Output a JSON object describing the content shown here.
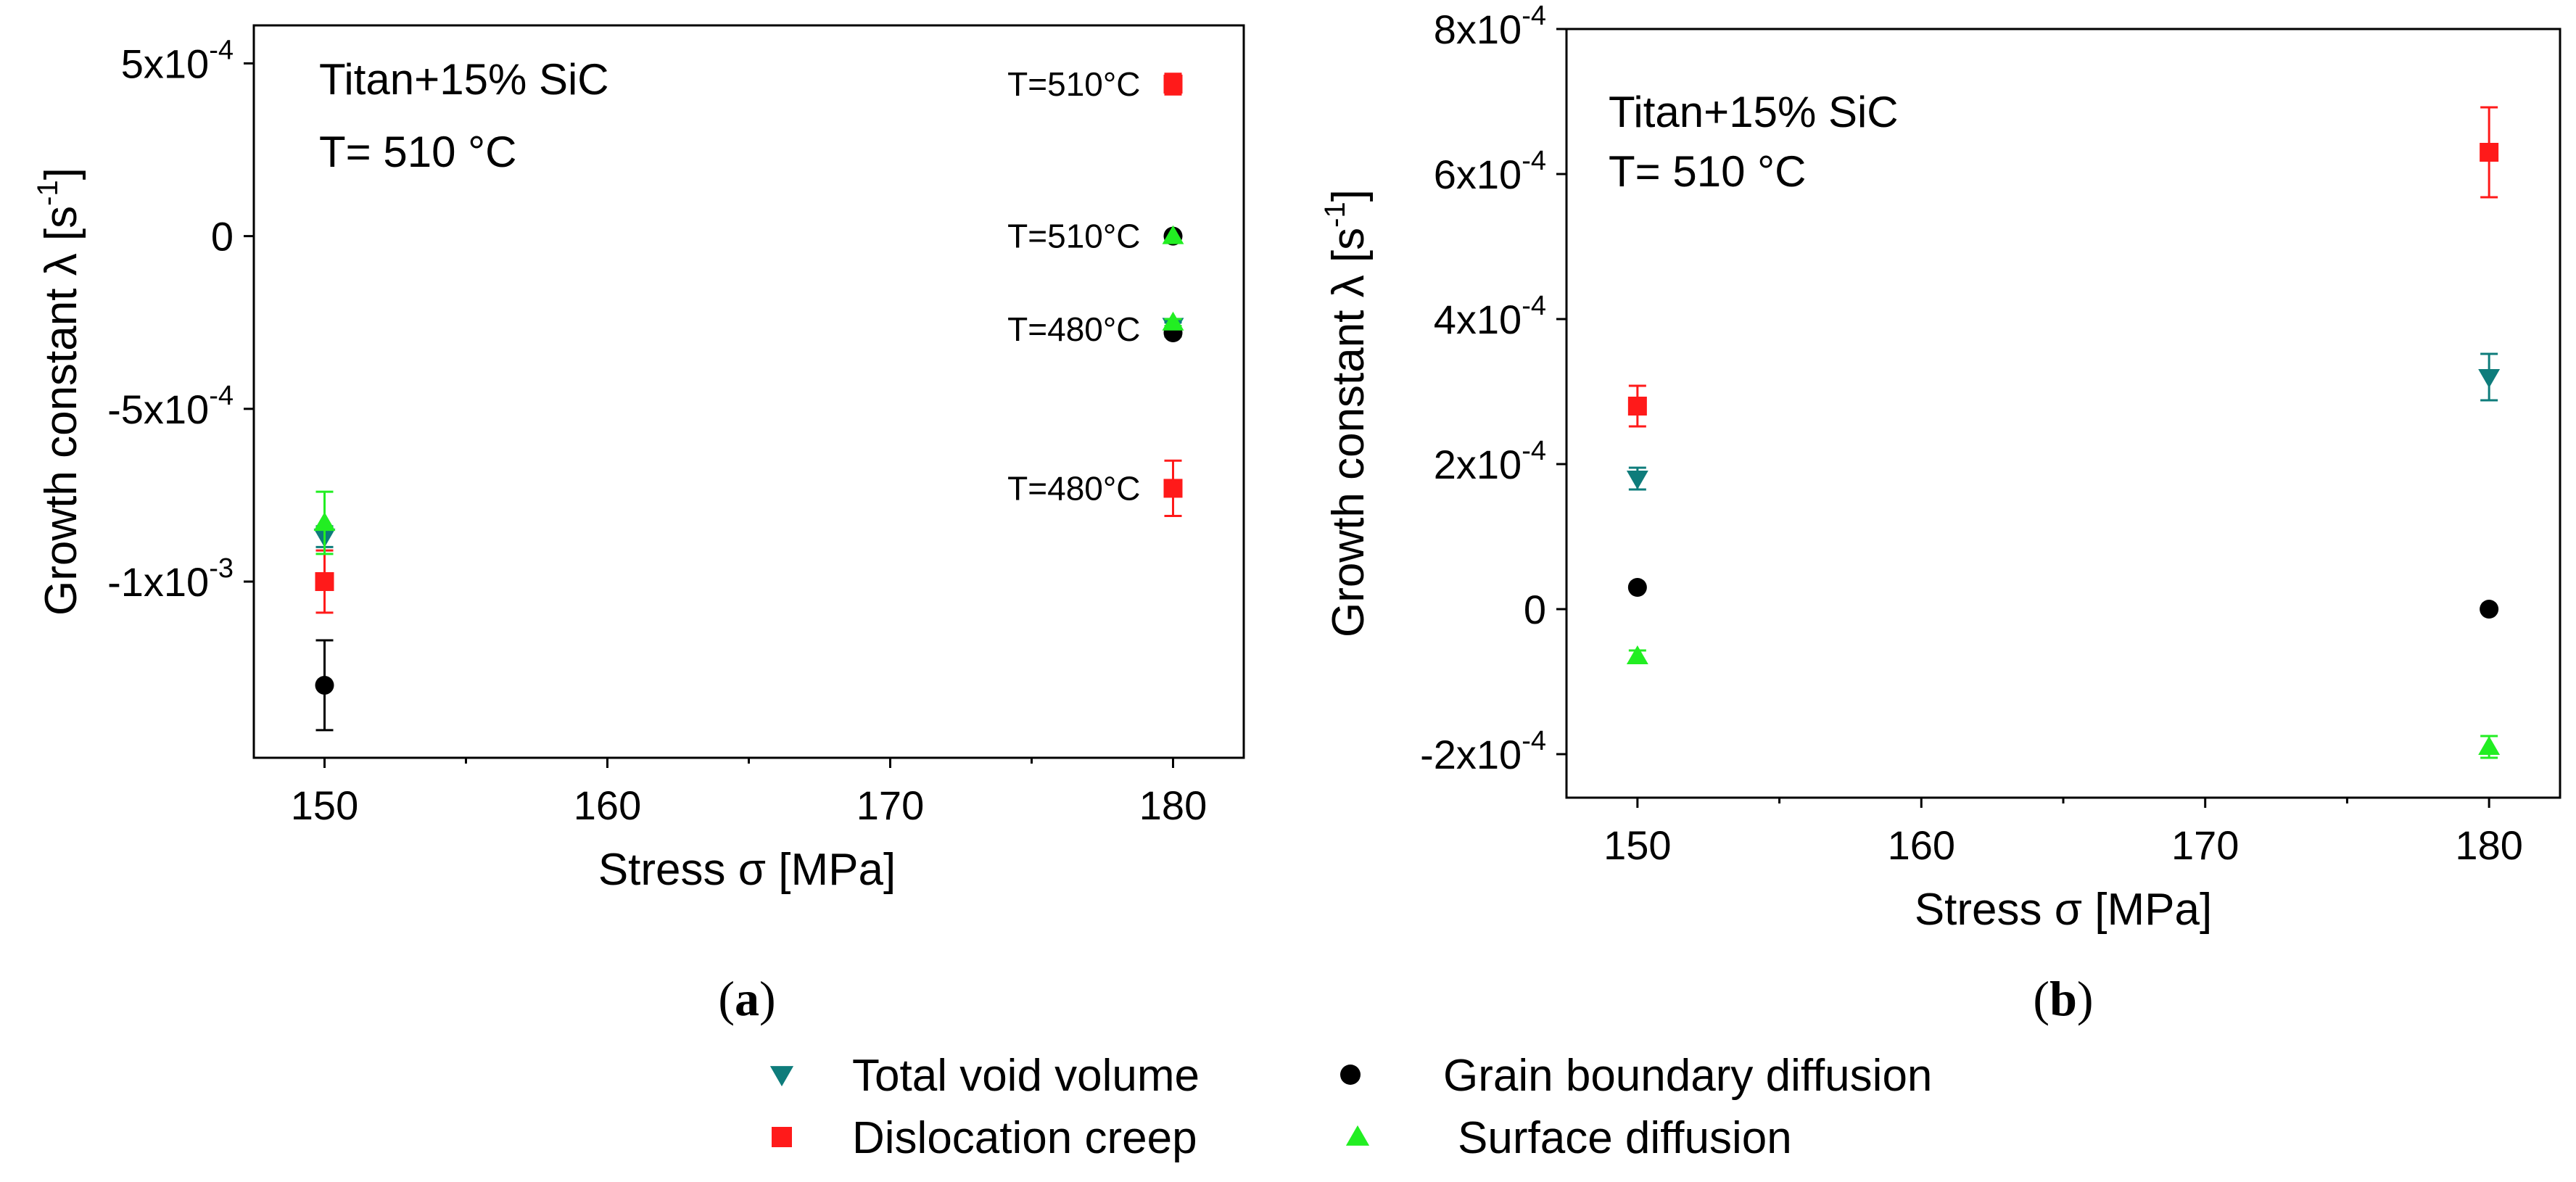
{
  "colors": {
    "total_void_volume": "#0e7c7b",
    "dislocation_creep": "#ff1a1a",
    "grain_boundary_diffusion": "#000000",
    "surface_diffusion": "#22ee22"
  },
  "legend": {
    "entries": [
      {
        "key": "total_void_volume",
        "label": "Total void volume",
        "marker": "triangle-down"
      },
      {
        "key": "grain_boundary_diffusion",
        "label": "Grain boundary diffusion",
        "marker": "circle"
      },
      {
        "key": "dislocation_creep",
        "label": "Dislocation creep",
        "marker": "square"
      },
      {
        "key": "surface_diffusion",
        "label": "Surface diffusion",
        "marker": "triangle-up"
      }
    ]
  },
  "chart_data": [
    {
      "type": "scatter",
      "panel_label": "a",
      "title": "",
      "annotation_lines": [
        "Titan+15% SiC",
        "T= 510 °C"
      ],
      "xlabel": "Stress σ [MPa]",
      "ylabel": "Growth constant λ [s-1]",
      "xlim": [
        147.5,
        182.5
      ],
      "ylim": [
        -0.00151,
        0.00061
      ],
      "xticks": [
        150,
        160,
        170,
        180
      ],
      "xtick_labels": [
        "150",
        "160",
        "170",
        "180"
      ],
      "yticks": [
        0.0005,
        0,
        -0.0005,
        -0.001
      ],
      "ytick_labels": [
        {
          "base": "5x10",
          "exp": "-4"
        },
        {
          "base": "0",
          "exp": ""
        },
        {
          "base": "-5x10",
          "exp": "-4"
        },
        {
          "base": "-1x10",
          "exp": "-3"
        }
      ],
      "series": [
        {
          "key": "total_void_volume",
          "name": "Total void volume",
          "marker": "triangle-down",
          "points": [
            {
              "x": 150,
              "y": -0.00087,
              "err": 3e-05
            },
            {
              "x": 180,
              "y": -0.00026,
              "err": 1e-05
            }
          ]
        },
        {
          "key": "dislocation_creep",
          "name": "Dislocation creep",
          "marker": "square",
          "points": [
            {
              "x": 150,
              "y": -0.001,
              "err": 9e-05
            },
            {
              "x": 180,
              "y": 0.00044,
              "err": 3e-05
            },
            {
              "x": 180,
              "y": -0.00073,
              "err": 8e-05
            }
          ]
        },
        {
          "key": "grain_boundary_diffusion",
          "name": "Grain boundary diffusion",
          "marker": "circle",
          "points": [
            {
              "x": 150,
              "y": -0.0013,
              "err": 0.00013
            },
            {
              "x": 180,
              "y": -0.00028,
              "err": 1e-05
            },
            {
              "x": 180,
              "y": 0.0,
              "err": 0.0
            }
          ]
        },
        {
          "key": "surface_diffusion",
          "name": "Surface diffusion",
          "marker": "triangle-up",
          "points": [
            {
              "x": 150,
              "y": -0.00083,
              "err": 9e-05
            },
            {
              "x": 180,
              "y": -0.00025,
              "err": 1e-05
            },
            {
              "x": 180,
              "y": 0.0,
              "err": 0.0
            }
          ]
        }
      ],
      "point_annotations": [
        {
          "text": "T=510°C",
          "x": 180,
          "y": 0.00044
        },
        {
          "text": "T=510°C",
          "x": 180,
          "y": 0.0
        },
        {
          "text": "T=480°C",
          "x": 180,
          "y": -0.00027
        },
        {
          "text": "T=480°C",
          "x": 180,
          "y": -0.00073
        }
      ]
    },
    {
      "type": "scatter",
      "panel_label": "b",
      "title": "",
      "annotation_lines": [
        "Titan+15% SiC",
        "T= 510 °C"
      ],
      "xlabel": "Stress σ [MPa]",
      "ylabel": "Growth constant λ [s-1]",
      "xlim": [
        147.5,
        182.5
      ],
      "ylim": [
        -0.00026,
        0.0008
      ],
      "xticks": [
        150,
        160,
        170,
        180
      ],
      "xtick_labels": [
        "150",
        "160",
        "170",
        "180"
      ],
      "yticks": [
        0.0008,
        0.0006,
        0.0004,
        0.0002,
        0,
        -0.0002
      ],
      "ytick_labels": [
        {
          "base": "8x10",
          "exp": "-4"
        },
        {
          "base": "6x10",
          "exp": "-4"
        },
        {
          "base": "4x10",
          "exp": "-4"
        },
        {
          "base": "2x10",
          "exp": "-4"
        },
        {
          "base": "0",
          "exp": ""
        },
        {
          "base": "-2x10",
          "exp": "-4"
        }
      ],
      "series": [
        {
          "key": "total_void_volume",
          "name": "Total void volume",
          "marker": "triangle-down",
          "points": [
            {
              "x": 150,
              "y": 0.00018,
              "err": 1.5e-05
            },
            {
              "x": 180,
              "y": 0.00032,
              "err": 3.2e-05
            }
          ]
        },
        {
          "key": "dislocation_creep",
          "name": "Dislocation creep",
          "marker": "square",
          "points": [
            {
              "x": 150,
              "y": 0.00028,
              "err": 2.8e-05
            },
            {
              "x": 180,
              "y": 0.00063,
              "err": 6.2e-05
            }
          ]
        },
        {
          "key": "grain_boundary_diffusion",
          "name": "Grain boundary diffusion",
          "marker": "circle",
          "points": [
            {
              "x": 150,
              "y": 3e-05,
              "err": 0.0
            },
            {
              "x": 180,
              "y": 0.0,
              "err": 0.0
            }
          ]
        },
        {
          "key": "surface_diffusion",
          "name": "Surface diffusion",
          "marker": "triangle-up",
          "points": [
            {
              "x": 150,
              "y": -6.5e-05,
              "err": 8e-06
            },
            {
              "x": 180,
              "y": -0.00019,
              "err": 1.5e-05
            }
          ]
        }
      ],
      "point_annotations": []
    }
  ]
}
